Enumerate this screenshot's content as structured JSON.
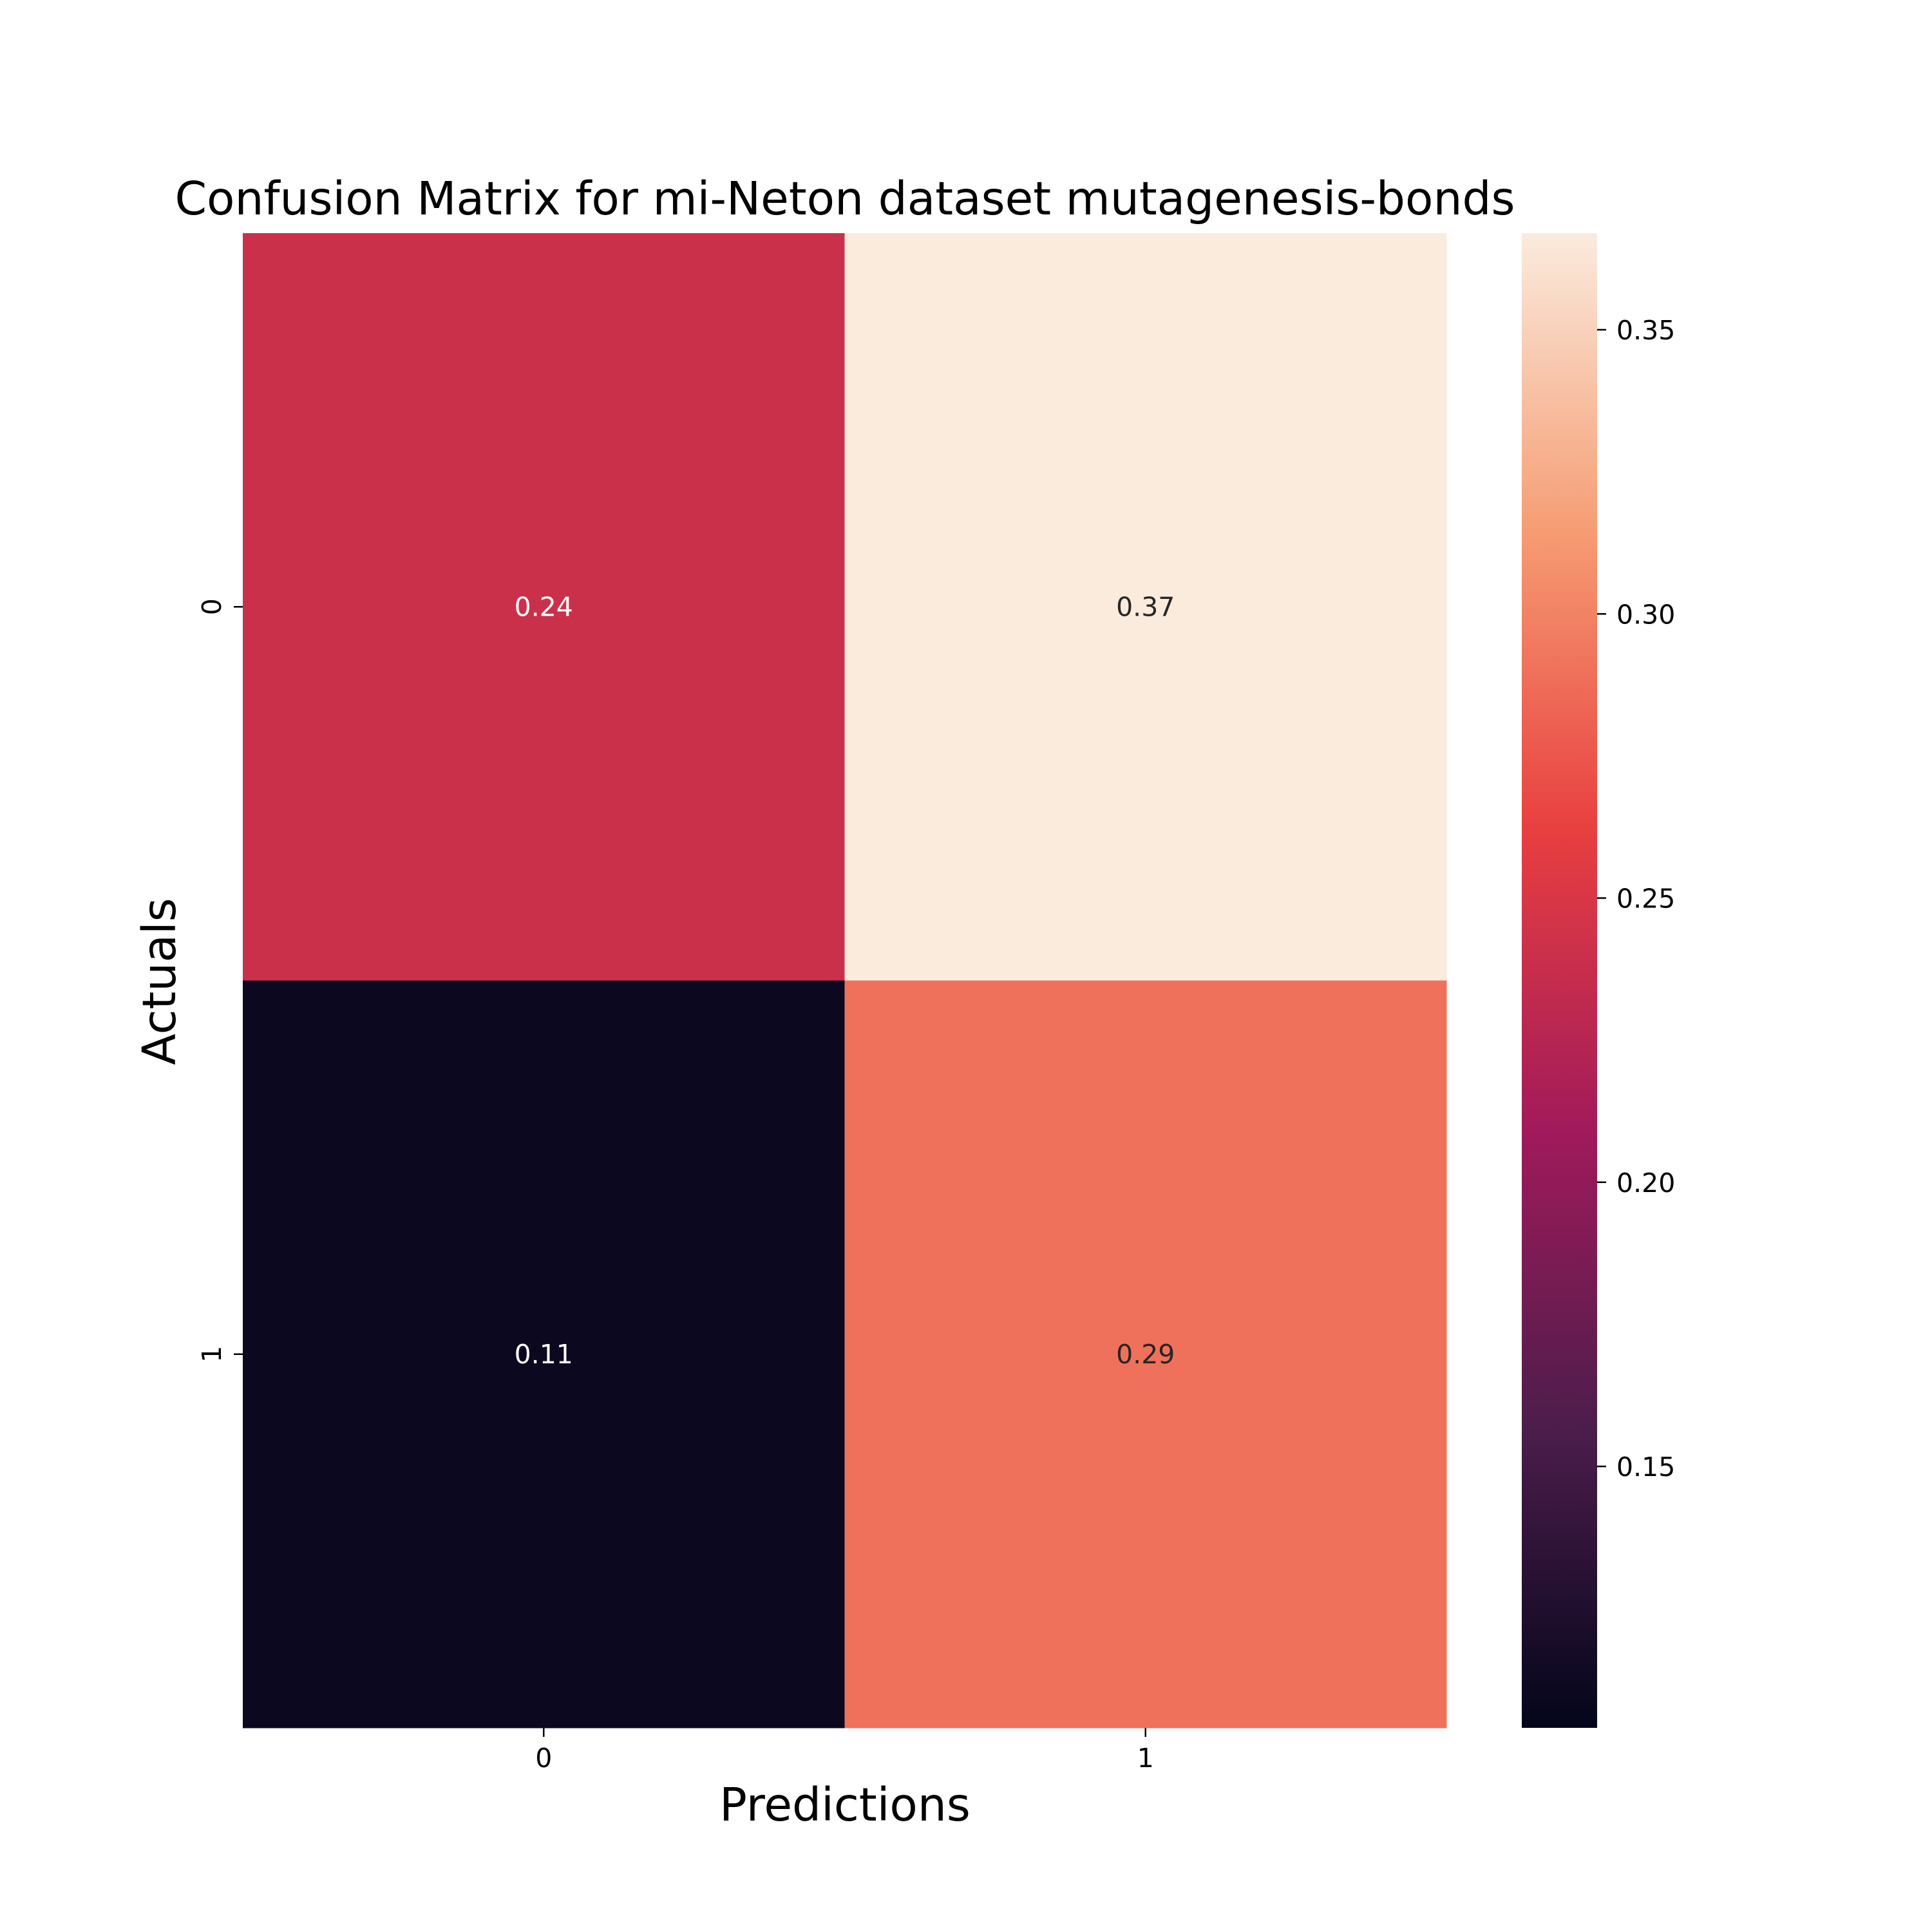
{
  "chart_data": {
    "type": "heatmap",
    "title": "Confusion Matrix for mi-Neton dataset mutagenesis-bonds",
    "xlabel": "Predictions",
    "ylabel": "Actuals",
    "x_categories": [
      "0",
      "1"
    ],
    "y_categories": [
      "0",
      "1"
    ],
    "values": [
      [
        0.24,
        0.37
      ],
      [
        0.11,
        0.29
      ]
    ],
    "value_labels": [
      [
        "0.24",
        "0.37"
      ],
      [
        "0.11",
        "0.29"
      ]
    ],
    "colorbar": {
      "range": [
        0.104,
        0.367
      ],
      "ticks": [
        0.15,
        0.2,
        0.25,
        0.3,
        0.35
      ],
      "tick_labels": [
        "0.15",
        "0.20",
        "0.25",
        "0.30",
        "0.35"
      ]
    },
    "colormap": "rocket",
    "colormap_stops": [
      "#03051a",
      "#4c1d4b",
      "#a11a5b",
      "#e83f3f",
      "#f69c73",
      "#faebdd"
    ],
    "cell_text_color": "#ffffff",
    "cell_text_color_dark": "#262626"
  }
}
